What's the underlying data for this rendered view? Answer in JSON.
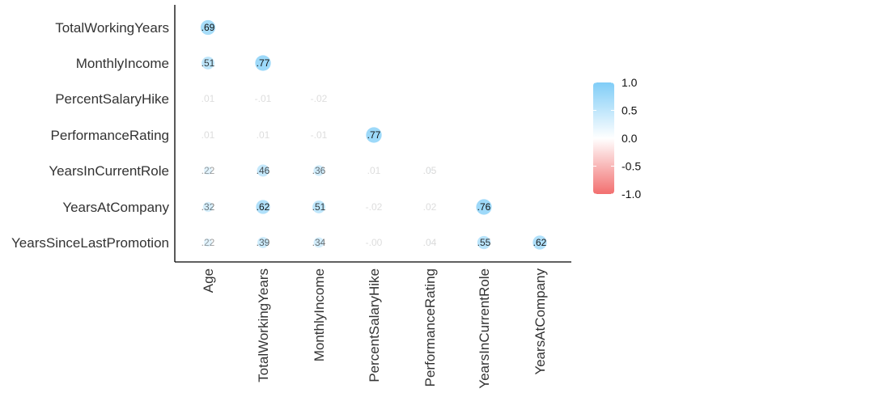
{
  "chart_data": {
    "type": "heatmap",
    "title": "",
    "xlabel": "",
    "ylabel": "",
    "rows": [
      "TotalWorkingYears",
      "MonthlyIncome",
      "PercentSalaryHike",
      "PerformanceRating",
      "YearsInCurrentRole",
      "YearsAtCompany",
      "YearsSinceLastPromotion"
    ],
    "columns": [
      "Age",
      "TotalWorkingYears",
      "MonthlyIncome",
      "PercentSalaryHike",
      "PerformanceRating",
      "YearsInCurrentRole",
      "YearsAtCompany"
    ],
    "values": [
      [
        0.69,
        null,
        null,
        null,
        null,
        null,
        null
      ],
      [
        0.51,
        0.77,
        null,
        null,
        null,
        null,
        null
      ],
      [
        0.01,
        -0.01,
        -0.02,
        null,
        null,
        null,
        null
      ],
      [
        0.01,
        0.01,
        -0.01,
        0.77,
        null,
        null,
        null
      ],
      [
        0.22,
        0.46,
        0.36,
        0.01,
        0.05,
        null,
        null
      ],
      [
        0.32,
        0.62,
        0.51,
        -0.02,
        0.02,
        0.76,
        null
      ],
      [
        0.22,
        0.39,
        0.34,
        -0.0,
        0.04,
        0.55,
        0.62
      ]
    ],
    "labels": [
      [
        ".69",
        null,
        null,
        null,
        null,
        null,
        null
      ],
      [
        ".51",
        ".77",
        null,
        null,
        null,
        null,
        null
      ],
      [
        ".01",
        "-.01",
        "-.02",
        null,
        null,
        null,
        null
      ],
      [
        ".01",
        ".01",
        "-.01",
        ".77",
        null,
        null,
        null
      ],
      [
        ".22",
        ".46",
        ".36",
        ".01",
        ".05",
        null,
        null
      ],
      [
        ".32",
        ".62",
        ".51",
        "-.02",
        ".02",
        ".76",
        null
      ],
      [
        ".22",
        ".39",
        ".34",
        "-.00",
        ".04",
        ".55",
        ".62"
      ]
    ],
    "legend": {
      "position": "right",
      "ticks": [
        "1.0",
        "0.5",
        "0.0",
        "-0.5",
        "-1.0"
      ],
      "tick_values": [
        1.0,
        0.5,
        0.0,
        -0.5,
        -1.0
      ],
      "range": [
        -1.0,
        1.0
      ]
    },
    "colors": {
      "positive": "#80cdf7",
      "neutral": "#ffffff",
      "negative": "#f26f6f",
      "axis": "#000000",
      "label_text": "#333333",
      "value_text": "#111111"
    },
    "grid": false
  }
}
